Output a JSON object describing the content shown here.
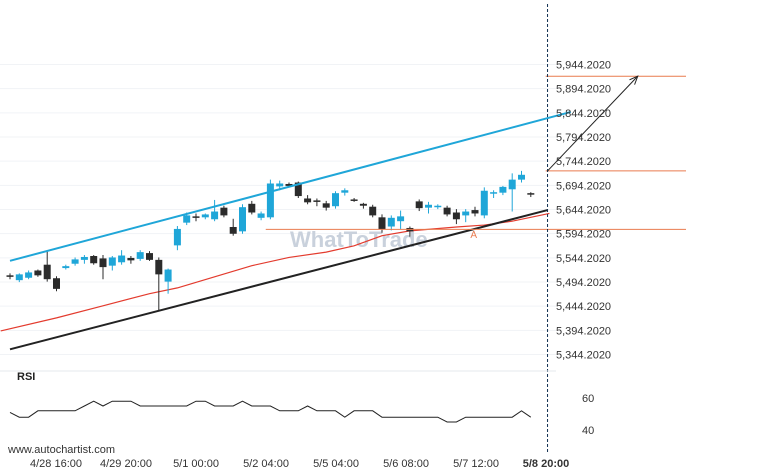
{
  "chart_data": {
    "type": "candlestick",
    "instrument_axis": {
      "yticks": [
        "5,944.2020",
        "5,894.2020",
        "5,844.2020",
        "5,794.2020",
        "5,744.2020",
        "5,694.2020",
        "5,644.2020",
        "5,594.2020",
        "5,544.2020",
        "5,494.2020",
        "5,444.2020",
        "5,394.2020",
        "5,344.2020"
      ],
      "ylim": [
        5330,
        5950
      ]
    },
    "x_labels": [
      "4/28 16:00",
      "4/29 20:00",
      "5/1 00:00",
      "5/2 04:00",
      "5/5 04:00",
      "5/6 08:00",
      "5/7 12:00",
      "5/8 20:00"
    ],
    "candles": [
      {
        "o": 5508,
        "h": 5512,
        "l": 5500,
        "c": 5506,
        "up": false
      },
      {
        "o": 5498,
        "h": 5512,
        "l": 5494,
        "c": 5510,
        "up": true
      },
      {
        "o": 5503,
        "h": 5518,
        "l": 5500,
        "c": 5514,
        "up": true
      },
      {
        "o": 5518,
        "h": 5520,
        "l": 5505,
        "c": 5508,
        "up": false
      },
      {
        "o": 5500,
        "h": 5558,
        "l": 5495,
        "c": 5530,
        "up": false
      },
      {
        "o": 5502,
        "h": 5506,
        "l": 5475,
        "c": 5480,
        "up": false
      },
      {
        "o": 5523,
        "h": 5530,
        "l": 5520,
        "c": 5527,
        "up": true
      },
      {
        "o": 5532,
        "h": 5545,
        "l": 5528,
        "c": 5541,
        "up": true
      },
      {
        "o": 5540,
        "h": 5550,
        "l": 5532,
        "c": 5546,
        "up": true
      },
      {
        "o": 5548,
        "h": 5550,
        "l": 5530,
        "c": 5533,
        "up": false
      },
      {
        "o": 5525,
        "h": 5550,
        "l": 5500,
        "c": 5543,
        "up": false
      },
      {
        "o": 5528,
        "h": 5548,
        "l": 5518,
        "c": 5545,
        "up": true
      },
      {
        "o": 5535,
        "h": 5560,
        "l": 5530,
        "c": 5549,
        "up": true
      },
      {
        "o": 5539,
        "h": 5548,
        "l": 5532,
        "c": 5544,
        "up": false
      },
      {
        "o": 5542,
        "h": 5560,
        "l": 5538,
        "c": 5556,
        "up": true
      },
      {
        "o": 5554,
        "h": 5558,
        "l": 5538,
        "c": 5540,
        "up": false
      },
      {
        "o": 5540,
        "h": 5545,
        "l": 5435,
        "c": 5510,
        "up": false
      },
      {
        "o": 5495,
        "h": 5522,
        "l": 5470,
        "c": 5520,
        "up": true
      },
      {
        "o": 5570,
        "h": 5610,
        "l": 5560,
        "c": 5604,
        "up": true
      },
      {
        "o": 5617,
        "h": 5638,
        "l": 5612,
        "c": 5632,
        "up": true
      },
      {
        "o": 5628,
        "h": 5636,
        "l": 5620,
        "c": 5630,
        "up": false
      },
      {
        "o": 5628,
        "h": 5636,
        "l": 5624,
        "c": 5634,
        "up": true
      },
      {
        "o": 5624,
        "h": 5664,
        "l": 5620,
        "c": 5640,
        "up": true
      },
      {
        "o": 5648,
        "h": 5652,
        "l": 5628,
        "c": 5632,
        "up": false
      },
      {
        "o": 5608,
        "h": 5625,
        "l": 5590,
        "c": 5594,
        "up": false
      },
      {
        "o": 5599,
        "h": 5655,
        "l": 5594,
        "c": 5649,
        "up": true
      },
      {
        "o": 5656,
        "h": 5662,
        "l": 5634,
        "c": 5638,
        "up": false
      },
      {
        "o": 5627,
        "h": 5640,
        "l": 5622,
        "c": 5636,
        "up": true
      },
      {
        "o": 5628,
        "h": 5706,
        "l": 5624,
        "c": 5698,
        "up": true
      },
      {
        "o": 5692,
        "h": 5704,
        "l": 5684,
        "c": 5698,
        "up": true
      },
      {
        "o": 5697,
        "h": 5700,
        "l": 5690,
        "c": 5693,
        "up": false
      },
      {
        "o": 5700,
        "h": 5702,
        "l": 5668,
        "c": 5672,
        "up": false
      },
      {
        "o": 5667,
        "h": 5674,
        "l": 5655,
        "c": 5659,
        "up": false
      },
      {
        "o": 5663,
        "h": 5667,
        "l": 5651,
        "c": 5661,
        "up": false
      },
      {
        "o": 5657,
        "h": 5662,
        "l": 5642,
        "c": 5648,
        "up": false
      },
      {
        "o": 5651,
        "h": 5682,
        "l": 5646,
        "c": 5678,
        "up": true
      },
      {
        "o": 5679,
        "h": 5688,
        "l": 5673,
        "c": 5684,
        "up": true
      },
      {
        "o": 5665,
        "h": 5668,
        "l": 5660,
        "c": 5662,
        "up": false
      },
      {
        "o": 5656,
        "h": 5658,
        "l": 5646,
        "c": 5652,
        "up": false
      },
      {
        "o": 5650,
        "h": 5654,
        "l": 5628,
        "c": 5632,
        "up": false
      },
      {
        "o": 5628,
        "h": 5634,
        "l": 5596,
        "c": 5603,
        "up": false
      },
      {
        "o": 5609,
        "h": 5632,
        "l": 5601,
        "c": 5627,
        "up": true
      },
      {
        "o": 5620,
        "h": 5642,
        "l": 5604,
        "c": 5630,
        "up": true
      },
      {
        "o": 5606,
        "h": 5609,
        "l": 5588,
        "c": 5599,
        "up": false
      },
      {
        "o": 5647,
        "h": 5665,
        "l": 5641,
        "c": 5661,
        "up": false
      },
      {
        "o": 5654,
        "h": 5660,
        "l": 5636,
        "c": 5648,
        "up": true
      },
      {
        "o": 5650,
        "h": 5655,
        "l": 5645,
        "c": 5652,
        "up": true
      },
      {
        "o": 5648,
        "h": 5652,
        "l": 5630,
        "c": 5634,
        "up": false
      },
      {
        "o": 5624,
        "h": 5645,
        "l": 5614,
        "c": 5638,
        "up": false
      },
      {
        "o": 5632,
        "h": 5645,
        "l": 5618,
        "c": 5640,
        "up": true
      },
      {
        "o": 5636,
        "h": 5650,
        "l": 5630,
        "c": 5643,
        "up": false
      },
      {
        "o": 5632,
        "h": 5690,
        "l": 5626,
        "c": 5683,
        "up": true
      },
      {
        "o": 5677,
        "h": 5684,
        "l": 5668,
        "c": 5680,
        "up": true
      },
      {
        "o": 5679,
        "h": 5693,
        "l": 5674,
        "c": 5691,
        "up": true
      },
      {
        "o": 5686,
        "h": 5719,
        "l": 5640,
        "c": 5706,
        "up": true
      },
      {
        "o": 5706,
        "h": 5724,
        "l": 5700,
        "c": 5716,
        "up": true
      },
      {
        "o": 5678,
        "h": 5680,
        "l": 5670,
        "c": 5677,
        "up": false
      }
    ],
    "channel": {
      "upper": {
        "from": [
          0,
          5538
        ],
        "to": [
          60.3,
          5846
        ],
        "color": "#1fa6d8"
      },
      "lower": {
        "from": [
          0,
          5355
        ],
        "to": [
          57.8,
          5643
        ],
        "color": "#222222"
      }
    },
    "moving_average": {
      "color": "#e33b2e",
      "points": [
        [
          -1,
          5393
        ],
        [
          5,
          5420
        ],
        [
          10,
          5445
        ],
        [
          15,
          5470
        ],
        [
          18,
          5482
        ],
        [
          22,
          5505
        ],
        [
          26,
          5528
        ],
        [
          30,
          5545
        ],
        [
          34,
          5556
        ],
        [
          37,
          5569
        ],
        [
          40,
          5590
        ],
        [
          43,
          5600
        ],
        [
          48,
          5608
        ],
        [
          51,
          5612
        ],
        [
          54,
          5620
        ],
        [
          58,
          5636
        ]
      ]
    },
    "levels": [
      {
        "price": 5920,
        "x_from": 57.6,
        "color": "#e97b4f"
      },
      {
        "price": 5724,
        "x_from": 57.6,
        "color": "#e97b4f"
      },
      {
        "price": 5603,
        "x_from": 27.5,
        "color": "#e97b4f"
      }
    ],
    "target_arrow": {
      "from": [
        57.8,
        5724
      ],
      "to": [
        67.5,
        5920
      ],
      "color": "#222222"
    },
    "pattern_label": {
      "text": "A",
      "at": [
        49.5,
        5585
      ]
    },
    "current_marker_index": 57.8,
    "rsi": {
      "title": "RSI",
      "yticks": [
        "60",
        "40"
      ],
      "ylim": [
        30,
        70
      ],
      "values": [
        51,
        48,
        48,
        52,
        52,
        52,
        52,
        52,
        55,
        58,
        55,
        58,
        58,
        58,
        55,
        55,
        55,
        55,
        55,
        55,
        58,
        58,
        55,
        55,
        55,
        58,
        55,
        55,
        55,
        52,
        52,
        52,
        55,
        52,
        52,
        52,
        48,
        52,
        52,
        52,
        48,
        48,
        48,
        48,
        48,
        48,
        48,
        45,
        45,
        48,
        48,
        48,
        48,
        48,
        48,
        52,
        48
      ]
    }
  },
  "watermark": {
    "text": "WhatToTrade"
  },
  "footer": {
    "url": "www.autochartist.com"
  }
}
